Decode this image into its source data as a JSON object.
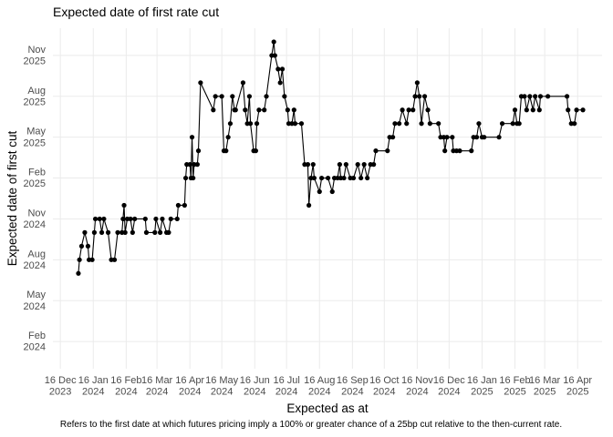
{
  "chart_data": {
    "type": "line",
    "title": "Expected date of first rate cut",
    "xlabel": "Expected as at",
    "ylabel": "Expected date of first cut",
    "caption": "Refers to the first date at which futures pricing imply a 100% or greater chance of a 25bp cut relative to the then-current rate.",
    "color": "#000000",
    "grid": true,
    "xlim": [
      "2023-12-09",
      "2025-05-09"
    ],
    "ylim": [
      "2023-12",
      "2026-01"
    ],
    "xticks": [
      {
        "value": "2023-12-16",
        "label": "16 Dec\n2023"
      },
      {
        "value": "2024-01-16",
        "label": "16 Jan\n2024"
      },
      {
        "value": "2024-02-16",
        "label": "16 Feb\n2024"
      },
      {
        "value": "2024-03-16",
        "label": "16 Mar\n2024"
      },
      {
        "value": "2024-04-16",
        "label": "16 Apr\n2024"
      },
      {
        "value": "2024-05-16",
        "label": "16 May\n2024"
      },
      {
        "value": "2024-06-16",
        "label": "16 Jun\n2024"
      },
      {
        "value": "2024-07-16",
        "label": "16 Jul\n2024"
      },
      {
        "value": "2024-08-16",
        "label": "16 Aug\n2024"
      },
      {
        "value": "2024-09-16",
        "label": "16 Sep\n2024"
      },
      {
        "value": "2024-10-16",
        "label": "16 Oct\n2024"
      },
      {
        "value": "2024-11-16",
        "label": "16 Nov\n2024"
      },
      {
        "value": "2024-12-16",
        "label": "16 Dec\n2024"
      },
      {
        "value": "2025-01-16",
        "label": "16 Jan\n2025"
      },
      {
        "value": "2025-02-16",
        "label": "16 Feb\n2025"
      },
      {
        "value": "2025-03-16",
        "label": "16 Mar\n2025"
      },
      {
        "value": "2025-04-16",
        "label": "16 Apr\n2025"
      }
    ],
    "yticks": [
      {
        "value": "2024-02",
        "label": "Feb\n2024"
      },
      {
        "value": "2024-05",
        "label": "May\n2024"
      },
      {
        "value": "2024-08",
        "label": "Aug\n2024"
      },
      {
        "value": "2024-11",
        "label": "Nov\n2024"
      },
      {
        "value": "2025-02",
        "label": "Feb\n2025"
      },
      {
        "value": "2025-05",
        "label": "May\n2025"
      },
      {
        "value": "2025-08",
        "label": "Aug\n2025"
      },
      {
        "value": "2025-11",
        "label": "Nov\n2025"
      }
    ],
    "x": [
      "2024-01-02",
      "2024-01-03",
      "2024-01-05",
      "2024-01-08",
      "2024-01-11",
      "2024-01-12",
      "2024-01-15",
      "2024-01-17",
      "2024-01-18",
      "2024-01-22",
      "2024-01-24",
      "2024-01-26",
      "2024-01-30",
      "2024-02-02",
      "2024-02-05",
      "2024-02-08",
      "2024-02-12",
      "2024-02-13",
      "2024-02-14",
      "2024-02-15",
      "2024-02-17",
      "2024-02-20",
      "2024-02-22",
      "2024-02-24",
      "2024-03-05",
      "2024-03-06",
      "2024-03-14",
      "2024-03-15",
      "2024-03-19",
      "2024-03-21",
      "2024-03-25",
      "2024-03-27",
      "2024-03-29",
      "2024-04-04",
      "2024-04-05",
      "2024-04-11",
      "2024-04-12",
      "2024-04-13",
      "2024-04-16",
      "2024-04-17",
      "2024-04-18",
      "2024-04-19",
      "2024-04-20",
      "2024-04-23",
      "2024-04-24",
      "2024-04-26",
      "2024-05-08",
      "2024-05-10",
      "2024-05-16",
      "2024-05-18",
      "2024-05-20",
      "2024-05-22",
      "2024-05-24",
      "2024-05-26",
      "2024-05-28",
      "2024-05-29",
      "2024-06-05",
      "2024-06-07",
      "2024-06-09",
      "2024-06-11",
      "2024-06-12",
      "2024-06-15",
      "2024-06-17",
      "2024-06-18",
      "2024-06-20",
      "2024-06-25",
      "2024-06-27",
      "2024-07-02",
      "2024-07-04",
      "2024-07-05",
      "2024-07-08",
      "2024-07-10",
      "2024-07-12",
      "2024-07-14",
      "2024-07-17",
      "2024-07-18",
      "2024-07-21",
      "2024-07-23",
      "2024-07-24",
      "2024-07-30",
      "2024-08-02",
      "2024-08-05",
      "2024-08-06",
      "2024-08-08",
      "2024-08-10",
      "2024-08-11",
      "2024-08-16",
      "2024-08-18",
      "2024-08-24",
      "2024-08-28",
      "2024-08-30",
      "2024-09-02",
      "2024-09-04",
      "2024-09-05",
      "2024-09-08",
      "2024-09-10",
      "2024-09-14",
      "2024-09-17",
      "2024-09-21",
      "2024-09-24",
      "2024-09-27",
      "2024-09-30",
      "2024-10-03",
      "2024-10-06",
      "2024-10-08",
      "2024-10-19",
      "2024-10-21",
      "2024-10-24",
      "2024-10-26",
      "2024-10-30",
      "2024-11-02",
      "2024-11-06",
      "2024-11-08",
      "2024-11-12",
      "2024-11-14",
      "2024-11-16",
      "2024-11-18",
      "2024-11-20",
      "2024-11-23",
      "2024-11-26",
      "2024-11-28",
      "2024-12-06",
      "2024-12-08",
      "2024-12-11",
      "2024-12-12",
      "2024-12-14",
      "2024-12-19",
      "2024-12-20",
      "2024-12-23",
      "2024-12-26",
      "2025-01-06",
      "2025-01-08",
      "2025-01-11",
      "2025-01-13",
      "2025-01-16",
      "2025-01-18",
      "2025-02-01",
      "2025-02-04",
      "2025-02-14",
      "2025-02-16",
      "2025-02-18",
      "2025-02-20",
      "2025-02-22",
      "2025-02-25",
      "2025-02-27",
      "2025-03-02",
      "2025-03-05",
      "2025-03-07",
      "2025-03-11",
      "2025-03-12",
      "2025-03-19",
      "2025-04-06",
      "2025-04-07",
      "2025-04-10",
      "2025-04-13",
      "2025-04-15",
      "2025-04-21"
    ],
    "values": [
      "2024-07",
      "2024-08",
      "2024-09",
      "2024-10",
      "2024-09",
      "2024-08",
      "2024-08",
      "2024-10",
      "2024-11",
      "2024-11",
      "2024-10",
      "2024-11",
      "2024-10",
      "2024-08",
      "2024-08",
      "2024-10",
      "2024-10",
      "2024-11",
      "2024-12",
      "2024-10",
      "2024-11",
      "2024-11",
      "2024-10",
      "2024-11",
      "2024-11",
      "2024-10",
      "2024-10",
      "2024-11",
      "2024-10",
      "2024-11",
      "2024-10",
      "2024-10",
      "2024-11",
      "2024-11",
      "2024-12",
      "2024-12",
      "2025-02",
      "2025-03",
      "2025-03",
      "2025-02",
      "2025-05",
      "2025-02",
      "2025-03",
      "2025-03",
      "2025-04",
      "2025-09",
      "2025-07",
      "2025-08",
      "2025-08",
      "2025-04",
      "2025-04",
      "2025-05",
      "2025-06",
      "2025-08",
      "2025-07",
      "2025-07",
      "2025-09",
      "2025-07",
      "2025-06",
      "2025-08",
      "2025-06",
      "2025-04",
      "2025-04",
      "2025-06",
      "2025-07",
      "2025-07",
      "2025-08",
      "2025-11",
      "2025-12",
      "2025-11",
      "2025-10",
      "2025-09",
      "2025-10",
      "2025-08",
      "2025-07",
      "2025-06",
      "2025-06",
      "2025-07",
      "2025-06",
      "2025-06",
      "2025-03",
      "2025-03",
      "2024-12",
      "2025-02",
      "2025-03",
      "2025-02",
      "2025-01",
      "2025-02",
      "2025-02",
      "2025-01",
      "2025-02",
      "2025-02",
      "2025-03",
      "2025-02",
      "2025-02",
      "2025-03",
      "2025-02",
      "2025-02",
      "2025-03",
      "2025-02",
      "2025-03",
      "2025-02",
      "2025-03",
      "2025-03",
      "2025-04",
      "2025-04",
      "2025-05",
      "2025-05",
      "2025-06",
      "2025-06",
      "2025-07",
      "2025-06",
      "2025-07",
      "2025-07",
      "2025-08",
      "2025-09",
      "2025-08",
      "2025-06",
      "2025-08",
      "2025-07",
      "2025-06",
      "2025-06",
      "2025-05",
      "2025-05",
      "2025-04",
      "2025-05",
      "2025-05",
      "2025-04",
      "2025-04",
      "2025-04",
      "2025-04",
      "2025-05",
      "2025-05",
      "2025-06",
      "2025-05",
      "2025-05",
      "2025-05",
      "2025-06",
      "2025-06",
      "2025-07",
      "2025-06",
      "2025-06",
      "2025-08",
      "2025-08",
      "2025-07",
      "2025-08",
      "2025-07",
      "2025-08",
      "2025-07",
      "2025-08",
      "2025-08",
      "2025-08",
      "2025-07",
      "2025-06",
      "2025-06",
      "2025-07",
      "2025-07"
    ]
  }
}
